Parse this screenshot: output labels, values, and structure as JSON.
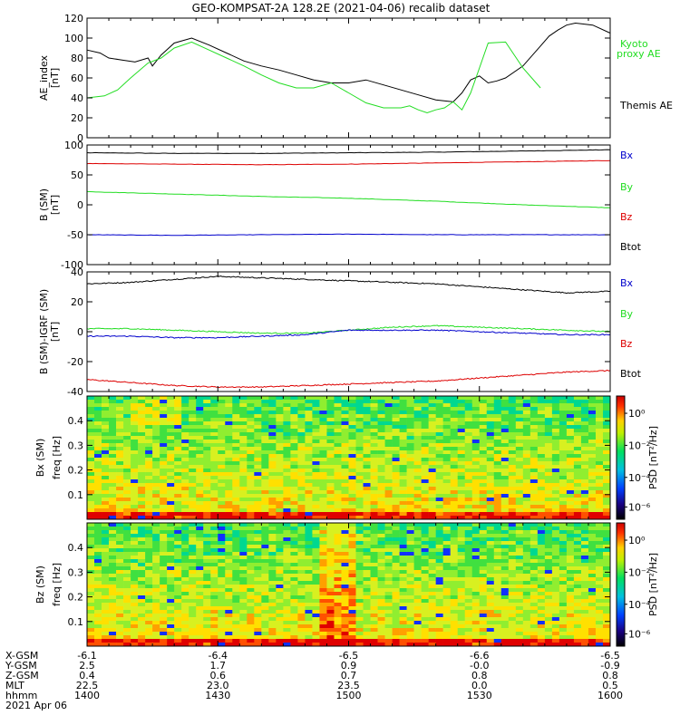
{
  "title": "GEO-KOMPSAT-2A 128.2E (2021-04-06) recalib dataset",
  "colors": {
    "black": "#000000",
    "red": "#dd0000",
    "green": "#22dd22",
    "blue": "#0000cc",
    "kyoto": "#22dd22"
  },
  "chart_data": [
    {
      "type": "line",
      "panel": "ae",
      "ylabel": "AE_index",
      "yunit": "[nT]",
      "ylim": [
        0,
        120
      ],
      "yticks": [
        0,
        20,
        40,
        60,
        80,
        100,
        120
      ],
      "xlim": [
        0,
        120
      ],
      "legend": [
        "Kyoto",
        "proxy AE",
        "Themis AE"
      ],
      "series": [
        {
          "name": "Themis AE",
          "color": "#000000",
          "x": [
            0,
            3,
            5,
            8,
            11,
            14,
            15,
            17,
            20,
            24,
            28,
            32,
            36,
            40,
            44,
            48,
            52,
            56,
            60,
            64,
            68,
            72,
            76,
            80,
            84,
            86,
            88,
            90,
            92,
            94,
            96,
            100,
            104,
            106,
            108,
            110,
            112,
            116,
            120
          ],
          "y": [
            88,
            85,
            80,
            78,
            76,
            80,
            72,
            83,
            95,
            100,
            93,
            85,
            77,
            72,
            68,
            63,
            58,
            55,
            55,
            58,
            53,
            48,
            43,
            38,
            36,
            45,
            58,
            62,
            55,
            57,
            60,
            72,
            92,
            102,
            108,
            113,
            115,
            113,
            105
          ]
        },
        {
          "name": "Kyoto proxy AE",
          "color": "#22dd22",
          "x": [
            0,
            4,
            7,
            10,
            14,
            17,
            20,
            24,
            28,
            32,
            36,
            40,
            44,
            48,
            52,
            56,
            60,
            64,
            68,
            72,
            74,
            76,
            78,
            80,
            82,
            84,
            86,
            88,
            90,
            92,
            96,
            100,
            104
          ],
          "y": [
            40,
            42,
            48,
            60,
            75,
            80,
            90,
            96,
            88,
            80,
            72,
            63,
            55,
            50,
            50,
            55,
            45,
            35,
            30,
            30,
            32,
            28,
            25,
            28,
            30,
            36,
            28,
            45,
            70,
            95,
            96,
            70,
            50
          ]
        }
      ]
    },
    {
      "type": "line",
      "panel": "bsm",
      "ylabel": "B (SM)",
      "yunit": "[nT]",
      "ylim": [
        -100,
        100
      ],
      "yticks": [
        -100,
        -50,
        0,
        50,
        100
      ],
      "xlim": [
        0,
        120
      ],
      "legend": [
        "Bx",
        "By",
        "Bz",
        "Btot"
      ],
      "series": [
        {
          "name": "Btot",
          "color": "#000000",
          "x": [
            0,
            20,
            40,
            60,
            80,
            100,
            120
          ],
          "y": [
            87,
            86,
            86,
            87,
            88,
            90,
            92
          ]
        },
        {
          "name": "Bz",
          "color": "#dd0000",
          "x": [
            0,
            20,
            40,
            60,
            80,
            100,
            120
          ],
          "y": [
            69,
            68,
            67,
            68,
            70,
            72,
            74
          ]
        },
        {
          "name": "By",
          "color": "#22dd22",
          "x": [
            0,
            20,
            40,
            60,
            80,
            100,
            120
          ],
          "y": [
            22,
            18,
            14,
            11,
            6,
            0,
            -5
          ]
        },
        {
          "name": "Bx",
          "color": "#0000cc",
          "x": [
            0,
            20,
            40,
            60,
            80,
            100,
            120
          ],
          "y": [
            -50,
            -51,
            -50,
            -49,
            -50,
            -50,
            -50
          ]
        }
      ]
    },
    {
      "type": "line",
      "panel": "dbsm",
      "ylabel": "B (SM)-IGRF (SM)",
      "yunit": "[nT]",
      "ylim": [
        -40,
        40
      ],
      "yticks": [
        -40,
        -20,
        0,
        20,
        40
      ],
      "xlim": [
        0,
        120
      ],
      "legend": [
        "Bx",
        "By",
        "Bz",
        "Btot"
      ],
      "series": [
        {
          "name": "Btot",
          "color": "#000000",
          "x": [
            0,
            10,
            20,
            30,
            40,
            50,
            60,
            70,
            80,
            90,
            100,
            110,
            120
          ],
          "y": [
            32,
            33,
            35,
            37,
            36,
            35,
            34,
            33,
            32,
            30,
            28,
            26,
            27
          ]
        },
        {
          "name": "Bz",
          "color": "#dd0000",
          "x": [
            0,
            10,
            20,
            30,
            40,
            50,
            60,
            70,
            80,
            90,
            100,
            110,
            120
          ],
          "y": [
            -32,
            -34,
            -36,
            -37,
            -37,
            -36,
            -35,
            -34,
            -33,
            -31,
            -29,
            -27,
            -26
          ]
        },
        {
          "name": "By",
          "color": "#22dd22",
          "x": [
            0,
            10,
            20,
            30,
            40,
            50,
            60,
            70,
            80,
            90,
            100,
            110,
            120
          ],
          "y": [
            2,
            2,
            1,
            0,
            -1,
            -1,
            1,
            3,
            4,
            3,
            2,
            1,
            0
          ]
        },
        {
          "name": "Bx",
          "color": "#0000cc",
          "x": [
            0,
            10,
            20,
            30,
            40,
            50,
            60,
            70,
            80,
            90,
            100,
            110,
            120
          ],
          "y": [
            -3,
            -3,
            -4,
            -4,
            -3,
            -2,
            1,
            1,
            1,
            0,
            -1,
            -2,
            -2
          ]
        }
      ]
    },
    {
      "type": "heatmap",
      "panel": "bx_spec",
      "ylabel": "Bx (SM)",
      "ylabel2": "freq [Hz]",
      "ylim": [
        0,
        0.5
      ],
      "yticks": [
        0.1,
        0.2,
        0.3,
        0.4
      ],
      "colorbar_label": "PSD [nT²/Hz]",
      "colorbar_ticks": [
        "10⁰",
        "10⁻²",
        "10⁻⁴",
        "10⁻⁶"
      ]
    },
    {
      "type": "heatmap",
      "panel": "bz_spec",
      "ylabel": "Bz (SM)",
      "ylabel2": "freq [Hz]",
      "ylim": [
        0,
        0.5
      ],
      "yticks": [
        0.1,
        0.2,
        0.3,
        0.4
      ],
      "colorbar_label": "PSD [nT²/Hz]",
      "colorbar_ticks": [
        "10⁰",
        "10⁻²",
        "10⁻⁴",
        "10⁻⁶"
      ]
    }
  ],
  "xaxis": {
    "labels": [
      "X-GSM",
      "Y-GSM",
      "Z-GSM",
      "MLT",
      "hhmm",
      "2021 Apr 06"
    ],
    "columns": [
      {
        "x": 0,
        "values": [
          "-6.1",
          "2.5",
          "0.4",
          "22.5",
          "1400"
        ]
      },
      {
        "x": 30,
        "values": [
          "-6.4",
          "1.7",
          "0.6",
          "23.0",
          "1430"
        ]
      },
      {
        "x": 60,
        "values": [
          "-6.5",
          "0.9",
          "0.7",
          "23.5",
          "1500"
        ]
      },
      {
        "x": 90,
        "values": [
          "-6.6",
          "-0.0",
          "0.8",
          "0.0",
          "1530"
        ]
      },
      {
        "x": 120,
        "values": [
          "-6.5",
          "-0.9",
          "0.8",
          "0.5",
          "1600"
        ]
      }
    ]
  }
}
